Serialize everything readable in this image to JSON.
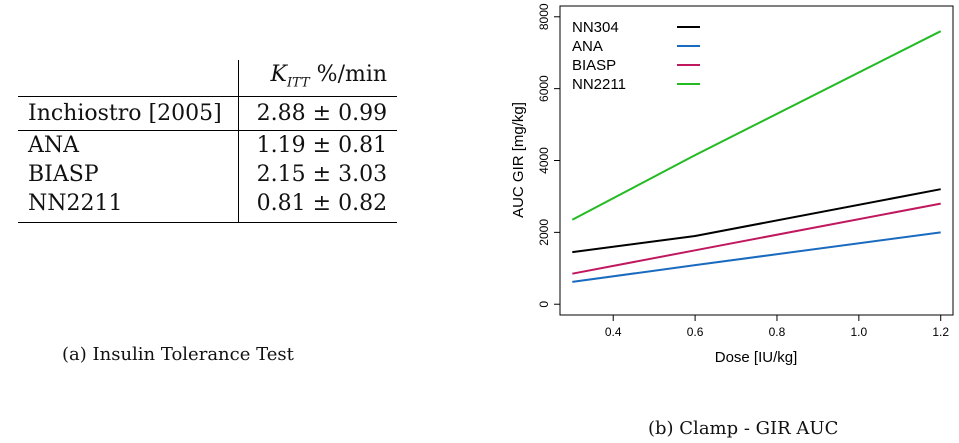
{
  "table": {
    "header": {
      "label_col": "",
      "value_col_prefix": "K",
      "value_col_sub": "ITT",
      "value_col_unit": " %/min"
    },
    "rows": [
      {
        "name": "Inchiostro [2005]",
        "value": "2.88 ± 0.99"
      },
      {
        "name": "ANA",
        "value": "1.19 ± 0.81"
      },
      {
        "name": "BIASP",
        "value": "2.15 ± 3.03"
      },
      {
        "name": "NN2211",
        "value": "0.81 ± 0.82"
      }
    ]
  },
  "captions": {
    "a": "(a) Insulin Tolerance Test",
    "b": "(b) Clamp - GIR AUC"
  },
  "chart_data": {
    "type": "line",
    "xlabel": "Dose [IU/kg]",
    "ylabel": "AUC GIR [mg/kg]",
    "xlim": [
      0.27,
      1.23
    ],
    "ylim": [
      -300,
      8300
    ],
    "xticks": [
      0.4,
      0.6,
      0.8,
      1.0,
      1.2
    ],
    "xtick_labels": [
      "0.4",
      "0.6",
      "0.8",
      "1.0",
      "1.2"
    ],
    "yticks": [
      0,
      2000,
      4000,
      6000,
      8000
    ],
    "ytick_labels": [
      "0",
      "2000",
      "4000",
      "6000",
      "8000"
    ],
    "legend_position": "top-left",
    "grid": false,
    "series": [
      {
        "name": "NN304",
        "color": "#000000",
        "x": [
          0.3,
          0.6,
          1.2
        ],
        "y": [
          1450,
          1900,
          3200
        ]
      },
      {
        "name": "ANA",
        "color": "#1a6bbf",
        "x": [
          0.3,
          0.6,
          1.2
        ],
        "y": [
          620,
          1090,
          2000
        ]
      },
      {
        "name": "BIASP",
        "color": "#c0185f",
        "x": [
          0.3,
          0.6,
          1.2
        ],
        "y": [
          850,
          1500,
          2800
        ]
      },
      {
        "name": "NN2211",
        "color": "#22bb22",
        "x": [
          0.3,
          0.6,
          1.2
        ],
        "y": [
          2350,
          4150,
          7600
        ]
      }
    ]
  }
}
